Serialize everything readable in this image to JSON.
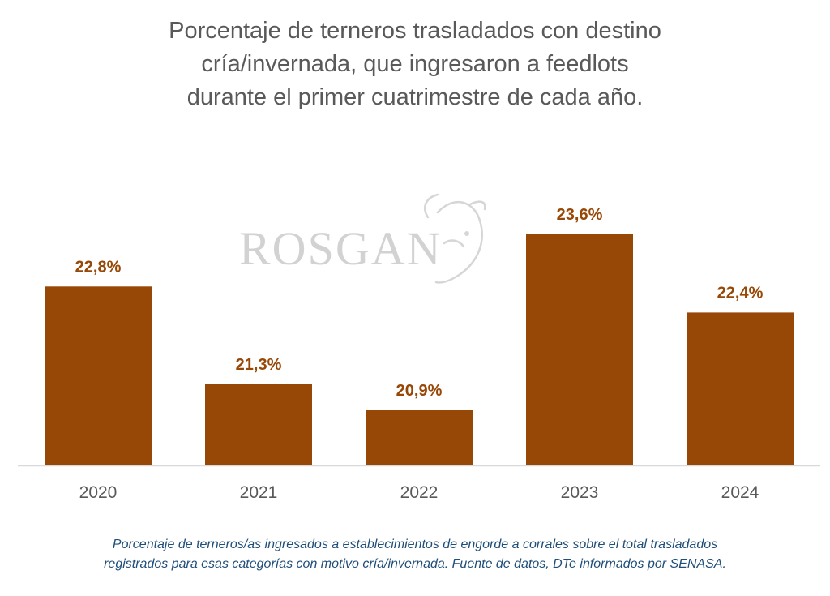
{
  "chart_data": {
    "type": "bar",
    "title_lines": [
      "Porcentaje de terneros trasladados con destino",
      "cría/invernada, que ingresaron a feedlots",
      "durante el primer cuatrimestre de cada año."
    ],
    "categories": [
      "2020",
      "2021",
      "2022",
      "2023",
      "2024"
    ],
    "values": [
      22.8,
      21.3,
      20.9,
      23.6,
      22.4
    ],
    "data_labels": [
      "22,8%",
      "21,3%",
      "20,9%",
      "23,6%",
      "22,4%"
    ],
    "ylim": [
      19.0,
      24.0
    ],
    "grid": false,
    "legend": "none",
    "xlabel": "",
    "ylabel": ""
  },
  "watermark": {
    "text": "ROSGAN"
  },
  "footnote_lines": [
    "Porcentaje de terneros/as ingresados a establecimientos de engorde a corrales sobre el total trasladados",
    "registrados para esas categorías con motivo cría/invernada. Fuente de datos, DTe informados por SENASA."
  ],
  "colors": {
    "bar": "#974706",
    "data_label": "#974706",
    "title": "#595959",
    "footnote": "#1f4e79",
    "axis": "#d9d9d9"
  }
}
